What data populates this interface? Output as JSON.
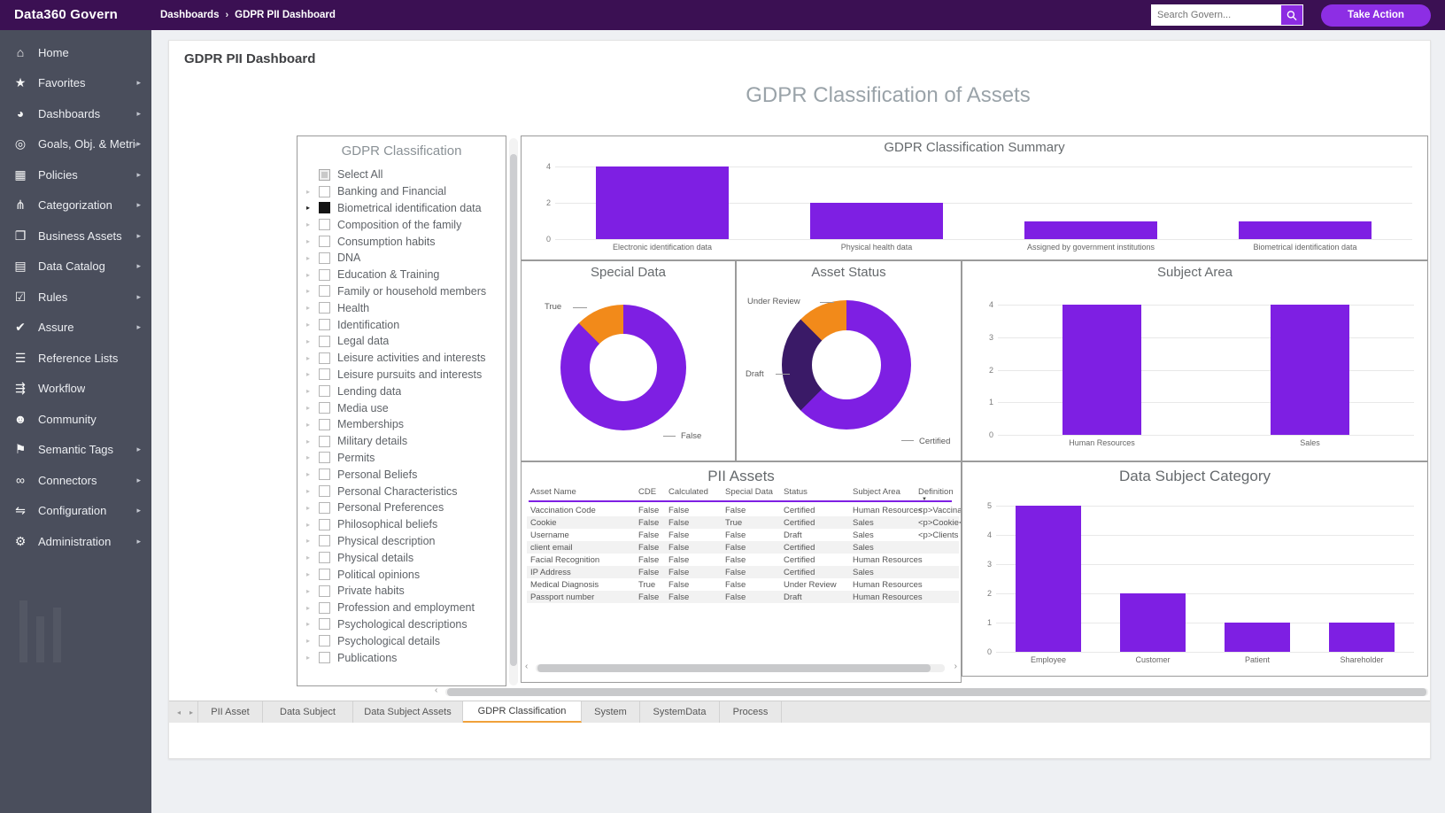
{
  "topbar": {
    "logo": "Data360 Govern",
    "breadcrumb_section": "Dashboards",
    "breadcrumb_page": "GDPR PII Dashboard",
    "search_placeholder": "Search Govern...",
    "take_action": "Take Action"
  },
  "icons": {
    "breadcrumb_chevron": "›",
    "tab_prev": "◂",
    "tab_next": "▸",
    "scroll_left": "‹",
    "scroll_right": "›"
  },
  "sidebar": {
    "items": [
      {
        "label": "Home",
        "icon": "home-icon",
        "glyph": "⌂",
        "has_submenu": false
      },
      {
        "label": "Favorites",
        "icon": "star-icon",
        "glyph": "★",
        "has_submenu": true
      },
      {
        "label": "Dashboards",
        "icon": "gauge-icon",
        "glyph": "◕",
        "has_submenu": true
      },
      {
        "label": "Goals, Obj. & Metrics",
        "icon": "target-icon",
        "glyph": "◎",
        "has_submenu": true
      },
      {
        "label": "Policies",
        "icon": "bank-icon",
        "glyph": "▦",
        "has_submenu": true
      },
      {
        "label": "Categorization",
        "icon": "sitemap-icon",
        "glyph": "⋔",
        "has_submenu": true
      },
      {
        "label": "Business Assets",
        "icon": "book-icon",
        "glyph": "❐",
        "has_submenu": true
      },
      {
        "label": "Data Catalog",
        "icon": "database-icon",
        "glyph": "▤",
        "has_submenu": true
      },
      {
        "label": "Rules",
        "icon": "checkbox-icon",
        "glyph": "☑",
        "has_submenu": true
      },
      {
        "label": "Assure",
        "icon": "check-circle-icon",
        "glyph": "✔",
        "has_submenu": true
      },
      {
        "label": "Reference Lists",
        "icon": "list-icon",
        "glyph": "☰",
        "has_submenu": false
      },
      {
        "label": "Workflow",
        "icon": "workflow-icon",
        "glyph": "⇶",
        "has_submenu": false
      },
      {
        "label": "Community",
        "icon": "people-icon",
        "glyph": "☻",
        "has_submenu": false
      },
      {
        "label": "Semantic Tags",
        "icon": "bookmark-icon",
        "glyph": "⚑",
        "has_submenu": true
      },
      {
        "label": "Connectors",
        "icon": "link-icon",
        "glyph": "∞",
        "has_submenu": true
      },
      {
        "label": "Configuration",
        "icon": "sliders-icon",
        "glyph": "⇋",
        "has_submenu": true
      },
      {
        "label": "Administration",
        "icon": "gear-icon",
        "glyph": "⚙",
        "has_submenu": true
      }
    ]
  },
  "page": {
    "title": "GDPR PII Dashboard",
    "heading": "GDPR Classification of Assets"
  },
  "filter": {
    "title": "GDPR Classification",
    "items": [
      {
        "label": "Select All",
        "state": "indeterminate",
        "expander": false
      },
      {
        "label": "Banking and Financial",
        "state": "unchecked",
        "expander": true
      },
      {
        "label": "Biometrical identification data",
        "state": "checked",
        "expander": true
      },
      {
        "label": "Composition of the family",
        "state": "unchecked",
        "expander": true
      },
      {
        "label": "Consumption habits",
        "state": "unchecked",
        "expander": true
      },
      {
        "label": "DNA",
        "state": "unchecked",
        "expander": true
      },
      {
        "label": "Education & Training",
        "state": "unchecked",
        "expander": true
      },
      {
        "label": "Family or household members",
        "state": "unchecked",
        "expander": true
      },
      {
        "label": "Health",
        "state": "unchecked",
        "expander": true
      },
      {
        "label": "Identification",
        "state": "unchecked",
        "expander": true
      },
      {
        "label": "Legal data",
        "state": "unchecked",
        "expander": true
      },
      {
        "label": "Leisure activities and interests",
        "state": "unchecked",
        "expander": true
      },
      {
        "label": "Leisure pursuits and interests",
        "state": "unchecked",
        "expander": true
      },
      {
        "label": "Lending data",
        "state": "unchecked",
        "expander": true
      },
      {
        "label": "Media use",
        "state": "unchecked",
        "expander": true
      },
      {
        "label": "Memberships",
        "state": "unchecked",
        "expander": true
      },
      {
        "label": "Military details",
        "state": "unchecked",
        "expander": true
      },
      {
        "label": "Permits",
        "state": "unchecked",
        "expander": true
      },
      {
        "label": "Personal Beliefs",
        "state": "unchecked",
        "expander": true
      },
      {
        "label": "Personal Characteristics",
        "state": "unchecked",
        "expander": true
      },
      {
        "label": "Personal Preferences",
        "state": "unchecked",
        "expander": true
      },
      {
        "label": "Philosophical beliefs",
        "state": "unchecked",
        "expander": true
      },
      {
        "label": "Physical description",
        "state": "unchecked",
        "expander": true
      },
      {
        "label": "Physical details",
        "state": "unchecked",
        "expander": true
      },
      {
        "label": "Political opinions",
        "state": "unchecked",
        "expander": true
      },
      {
        "label": "Private habits",
        "state": "unchecked",
        "expander": true
      },
      {
        "label": "Profession and employment",
        "state": "unchecked",
        "expander": true
      },
      {
        "label": "Psychological descriptions",
        "state": "unchecked",
        "expander": true
      },
      {
        "label": "Psychological details",
        "state": "unchecked",
        "expander": true
      },
      {
        "label": "Publications",
        "state": "unchecked",
        "expander": true
      }
    ]
  },
  "chart_data": [
    {
      "type": "bar",
      "title": "GDPR Classification Summary",
      "categories": [
        "Electronic identification data",
        "Physical health data",
        "Assigned by government institutions",
        "Biometrical identification data"
      ],
      "values": [
        4,
        2,
        1,
        1
      ],
      "yticks": [
        0,
        2,
        4
      ],
      "ylim": [
        0,
        4.3
      ],
      "bar_color": "#7e1fe3",
      "xlabel": "",
      "ylabel": "",
      "legend": "none",
      "grid": true
    },
    {
      "type": "pie",
      "title": "Special Data",
      "slices": [
        {
          "label": "False",
          "value": 7,
          "color": "#7e1fe3"
        },
        {
          "label": "True",
          "value": 1,
          "color": "#f28a1a"
        }
      ],
      "style": "donut"
    },
    {
      "type": "pie",
      "title": "Asset Status",
      "slices": [
        {
          "label": "Certified",
          "value": 5,
          "color": "#7e1fe3"
        },
        {
          "label": "Draft",
          "value": 2,
          "color": "#3a1a67"
        },
        {
          "label": "Under Review",
          "value": 1,
          "color": "#f28a1a"
        }
      ],
      "style": "donut"
    },
    {
      "type": "bar",
      "title": "Subject Area",
      "categories": [
        "Human Resources",
        "Sales"
      ],
      "values": [
        4,
        4
      ],
      "yticks": [
        0,
        1,
        2,
        3,
        4
      ],
      "ylim": [
        0,
        4.3
      ],
      "bar_color": "#7e1fe3",
      "xlabel": "",
      "ylabel": "",
      "legend": "none",
      "grid": true
    },
    {
      "type": "table",
      "title": "PII Assets",
      "columns": [
        "Asset Name",
        "CDE",
        "Calculated",
        "Special Data",
        "Status",
        "Subject Area",
        "Definition"
      ],
      "rows": [
        [
          "Vaccination Code",
          "False",
          "False",
          "False",
          "Certified",
          "Human Resources",
          "<p>Vaccination Code<"
        ],
        [
          "Cookie",
          "False",
          "False",
          "True",
          "Certified",
          "Sales",
          "<p>Cookie</p>"
        ],
        [
          "Username",
          "False",
          "False",
          "False",
          "Draft",
          "Sales",
          "<p>Clients user name"
        ],
        [
          "client email",
          "False",
          "False",
          "False",
          "Certified",
          "Sales",
          ""
        ],
        [
          "Facial Recognition",
          "False",
          "False",
          "False",
          "Certified",
          "Human Resources",
          ""
        ],
        [
          "IP Address",
          "False",
          "False",
          "False",
          "Certified",
          "Sales",
          ""
        ],
        [
          "Medical Diagnosis",
          "True",
          "False",
          "False",
          "Under Review",
          "Human Resources",
          ""
        ],
        [
          "Passport number",
          "False",
          "False",
          "False",
          "Draft",
          "Human Resources",
          ""
        ]
      ]
    },
    {
      "type": "bar",
      "title": "Data Subject Category",
      "categories": [
        "Employee",
        "Customer",
        "Patient",
        "Shareholder"
      ],
      "values": [
        5,
        2,
        1,
        1
      ],
      "yticks": [
        0,
        1,
        2,
        3,
        4,
        5
      ],
      "ylim": [
        0,
        5.4
      ],
      "bar_color": "#7e1fe3",
      "xlabel": "",
      "ylabel": "",
      "legend": "none",
      "grid": true
    }
  ],
  "tabs": {
    "items": [
      {
        "label": "PII Asset",
        "active": false
      },
      {
        "label": "Data Subject",
        "active": false
      },
      {
        "label": "Data Subject Assets",
        "active": false
      },
      {
        "label": "GDPR Classification",
        "active": true
      },
      {
        "label": "System",
        "active": false
      },
      {
        "label": "SystemData",
        "active": false
      },
      {
        "label": "Process",
        "active": false
      }
    ]
  },
  "colors": {
    "topbar_bg": "#3b1053",
    "accent_purple": "#8c2be2",
    "chart_purple": "#7e1fe3",
    "orange": "#f28a1a",
    "dark_purple": "#3a1a67",
    "sidebar_bg": "#4a4e5c",
    "active_tab_underline": "#f0a13a",
    "table_header_underline": "#7e1fe3"
  }
}
